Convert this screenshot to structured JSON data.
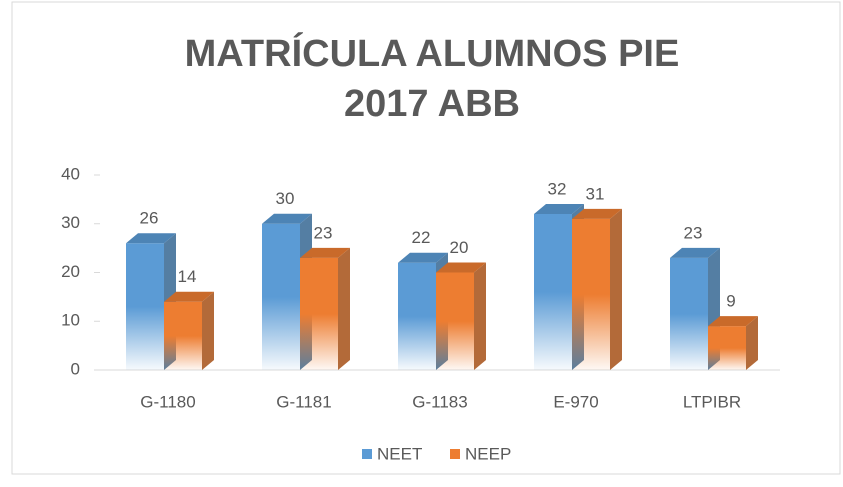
{
  "chart_data": {
    "type": "bar3d",
    "title": [
      "MATRÍCULA ALUMNOS PIE",
      "2017 ABB"
    ],
    "categories": [
      "G-1180",
      "G-1181",
      "G-1183",
      "E-970",
      "LTPIBR"
    ],
    "series": [
      {
        "name": "NEET",
        "color": "#5b9bd5",
        "values": [
          26,
          30,
          22,
          32,
          23
        ]
      },
      {
        "name": "NEEP",
        "color": "#ed7d31",
        "values": [
          14,
          23,
          20,
          31,
          9
        ]
      }
    ],
    "ylim": [
      0,
      40
    ],
    "yticks": [
      0,
      10,
      20,
      30,
      40
    ],
    "legend": "bottom"
  }
}
